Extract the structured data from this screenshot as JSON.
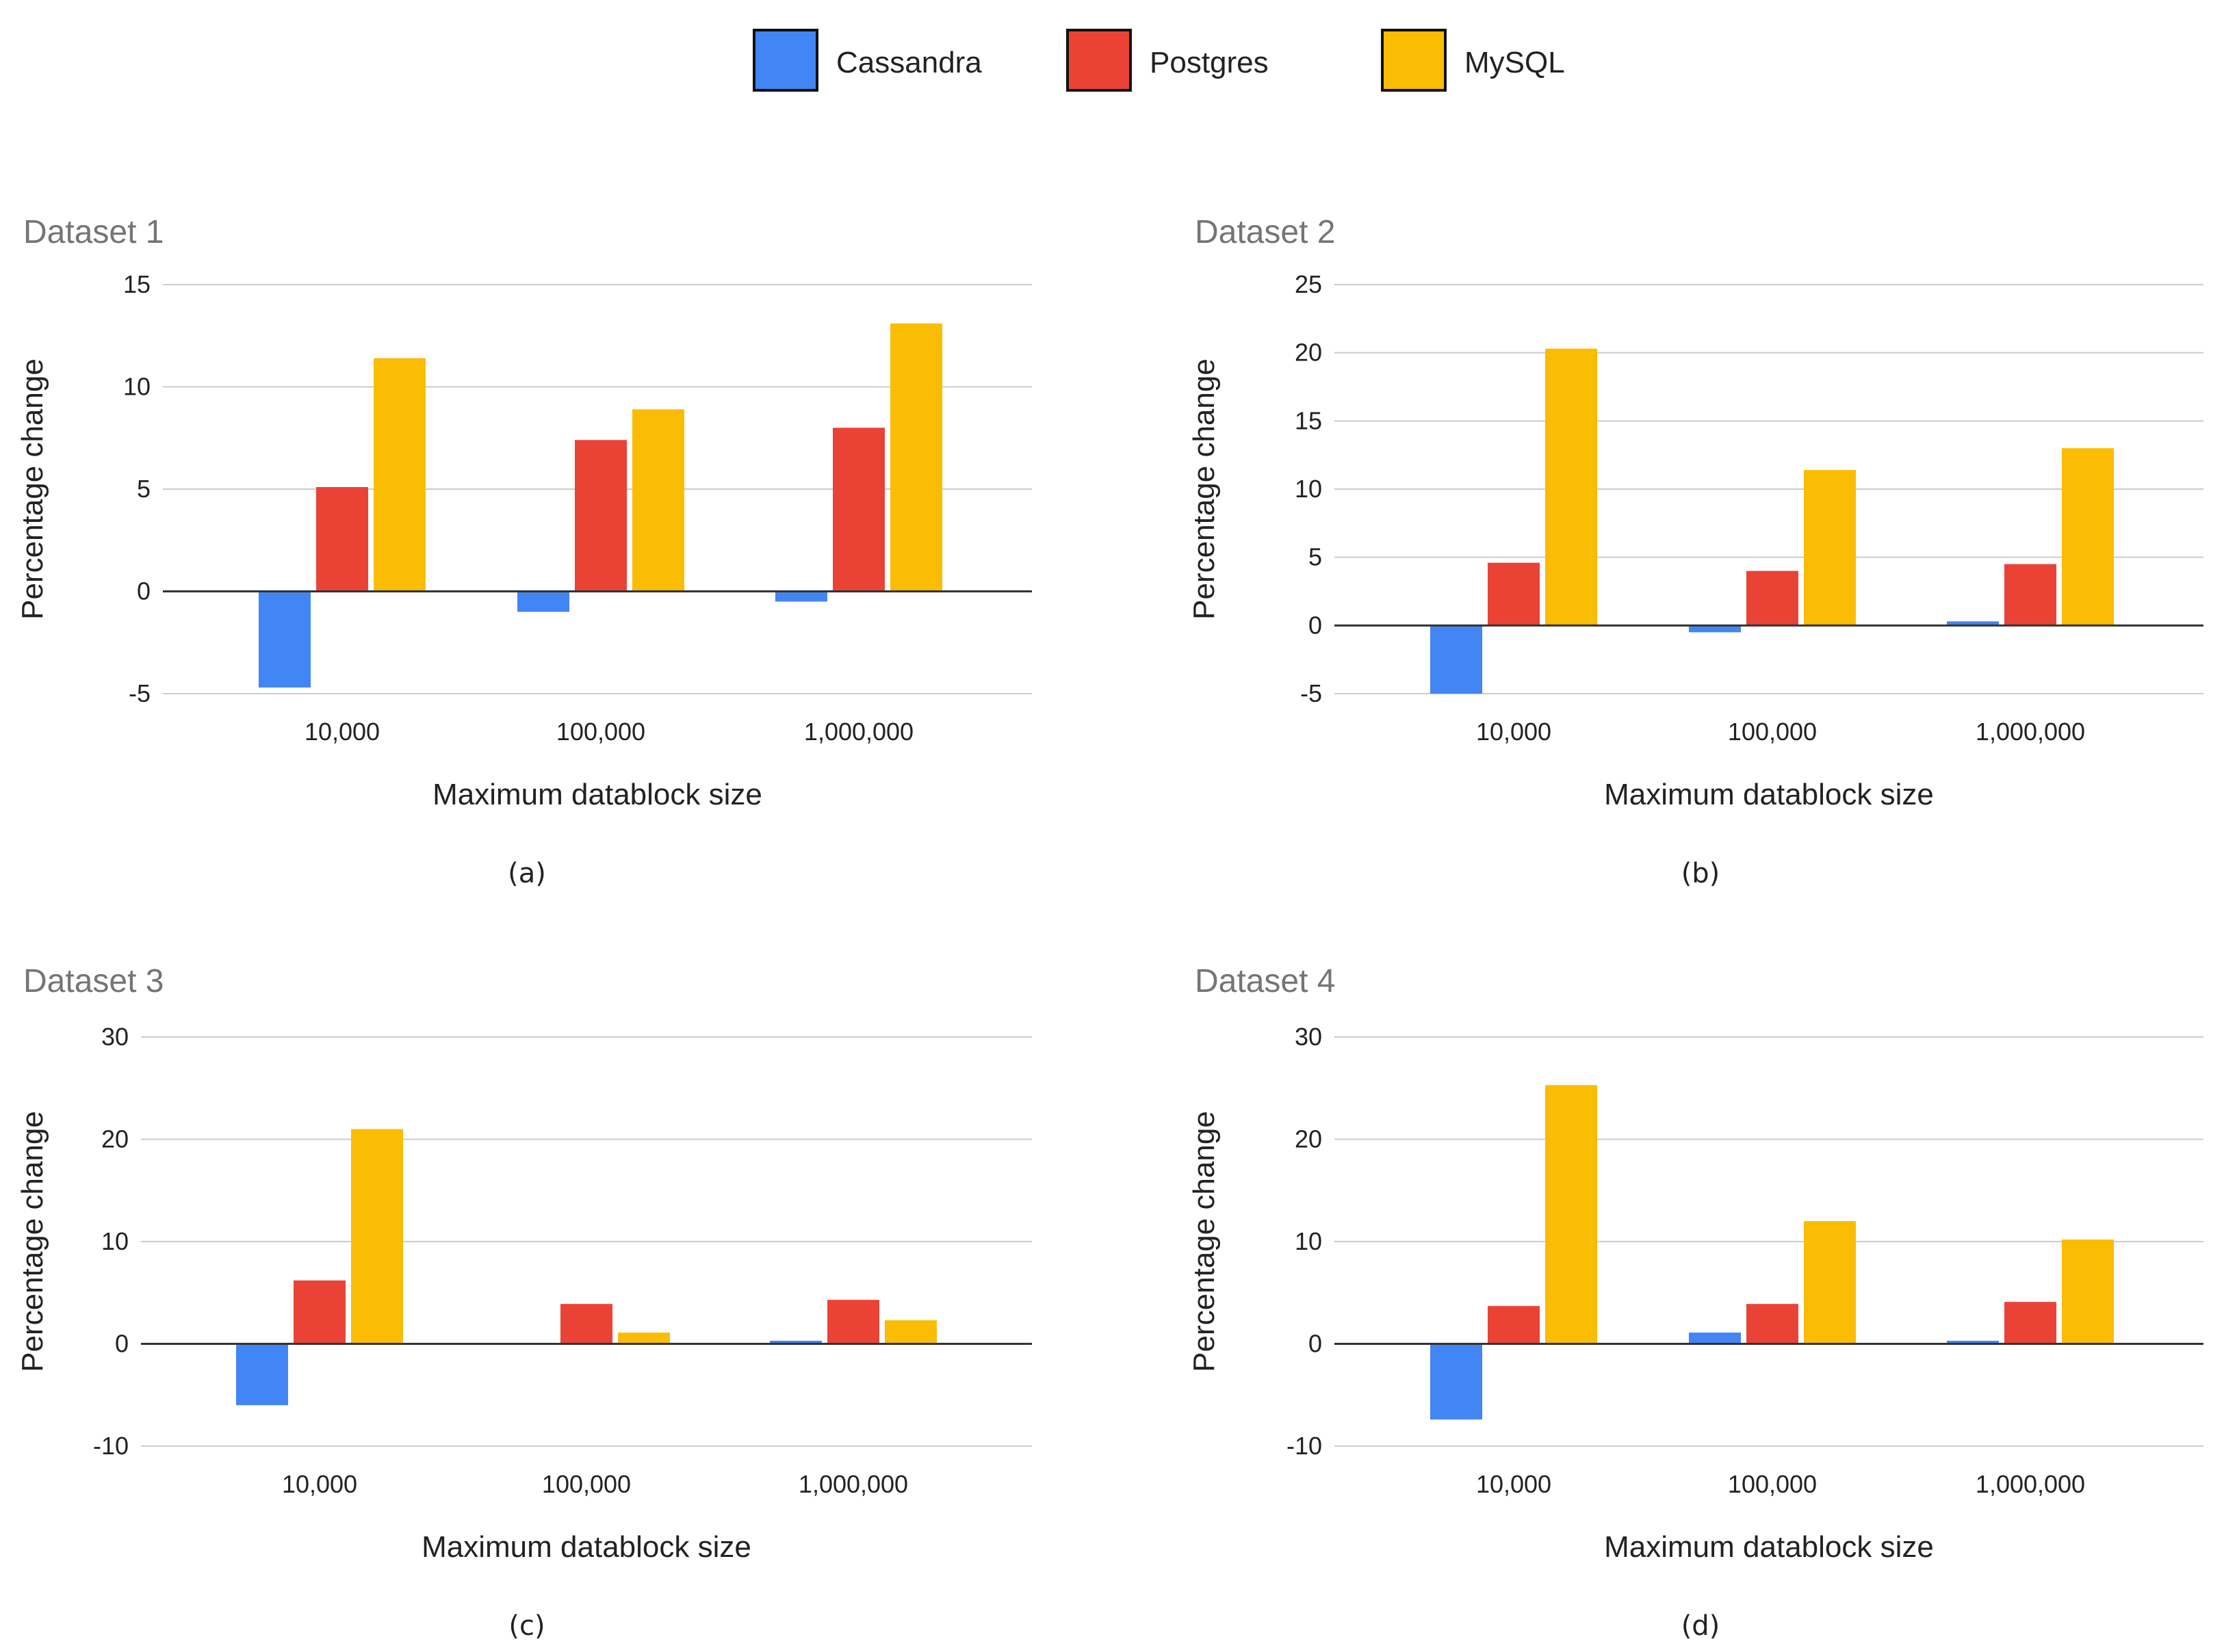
{
  "legend": [
    {
      "name": "Cassandra",
      "color": "#4285F4"
    },
    {
      "name": "Postgres",
      "color": "#EA4335"
    },
    {
      "name": "MySQL",
      "color": "#FBBC04"
    }
  ],
  "chart_data": [
    {
      "type": "bar",
      "title": "Dataset 1",
      "caption": "(a)",
      "xlabel": "Maximum datablock size",
      "ylabel": "Percentage change",
      "categories": [
        "10,000",
        "100,000",
        "1,000,000"
      ],
      "yticks": [
        15,
        10,
        5,
        0,
        -5
      ],
      "ylim": [
        -5,
        15
      ],
      "series": [
        {
          "name": "Cassandra",
          "values": [
            -4.7,
            -1.0,
            -0.5
          ]
        },
        {
          "name": "Postgres",
          "values": [
            5.1,
            7.4,
            8.0
          ]
        },
        {
          "name": "MySQL",
          "values": [
            11.4,
            8.9,
            13.1
          ]
        }
      ]
    },
    {
      "type": "bar",
      "title": "Dataset 2",
      "caption": "(b)",
      "xlabel": "Maximum datablock size",
      "ylabel": "Percentage change",
      "categories": [
        "10,000",
        "100,000",
        "1,000,000"
      ],
      "yticks": [
        25,
        20,
        15,
        10,
        5,
        0,
        -5
      ],
      "ylim": [
        -5,
        25
      ],
      "series": [
        {
          "name": "Cassandra",
          "values": [
            -5.0,
            -0.5,
            0.3
          ]
        },
        {
          "name": "Postgres",
          "values": [
            4.6,
            4.0,
            4.5
          ]
        },
        {
          "name": "MySQL",
          "values": [
            20.3,
            11.4,
            13.0
          ]
        }
      ]
    },
    {
      "type": "bar",
      "title": "Dataset 3",
      "caption": "(c)",
      "xlabel": "Maximum datablock size",
      "ylabel": "Percentage change",
      "categories": [
        "10,000",
        "100,000",
        "1,000,000"
      ],
      "yticks": [
        30,
        20,
        10,
        0,
        -10
      ],
      "ylim": [
        -10,
        30
      ],
      "series": [
        {
          "name": "Cassandra",
          "values": [
            -6.0,
            0,
            0.3
          ]
        },
        {
          "name": "Postgres",
          "values": [
            6.2,
            3.9,
            4.3
          ]
        },
        {
          "name": "MySQL",
          "values": [
            21.0,
            1.1,
            2.3
          ]
        }
      ]
    },
    {
      "type": "bar",
      "title": "Dataset 4",
      "caption": "(d)",
      "xlabel": "Maximum datablock size",
      "ylabel": "Percentage change",
      "categories": [
        "10,000",
        "100,000",
        "1,000,000"
      ],
      "yticks": [
        30,
        20,
        10,
        0,
        -10
      ],
      "ylim": [
        -10,
        30
      ],
      "series": [
        {
          "name": "Cassandra",
          "values": [
            -7.4,
            1.1,
            0.3
          ]
        },
        {
          "name": "Postgres",
          "values": [
            3.7,
            3.9,
            4.1
          ]
        },
        {
          "name": "MySQL",
          "values": [
            25.3,
            12.0,
            10.2
          ]
        }
      ]
    }
  ]
}
